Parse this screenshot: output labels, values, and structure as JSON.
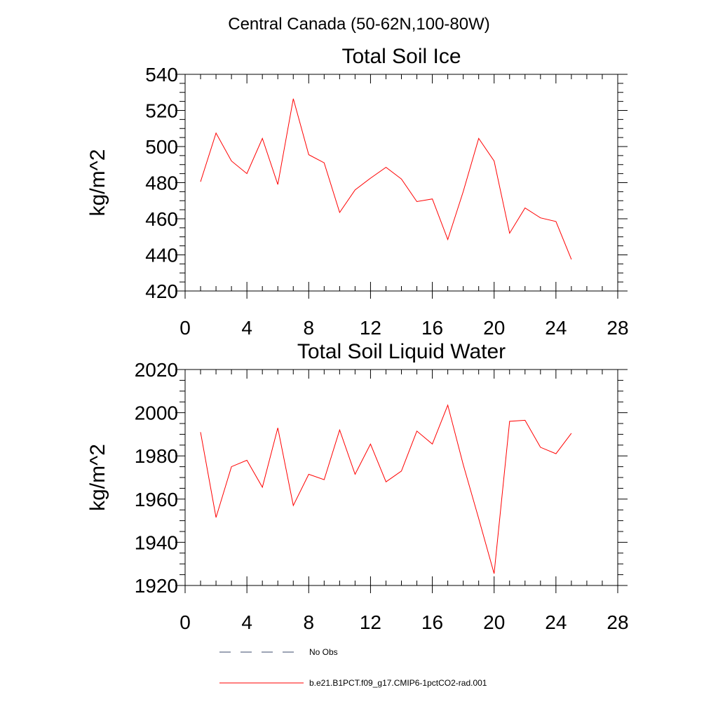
{
  "main_title": "Central Canada (50-62N,100-80W)",
  "colors": {
    "model": "#ff0000",
    "obs": "#3b4a6b"
  },
  "legend": {
    "obs_label": "No Obs",
    "model_label": "b.e21.B1PCT.f09_g17.CMIP6-1pctCO2-rad.001"
  },
  "chart_data": [
    {
      "type": "line",
      "title": "Total Soil Ice",
      "ylabel": "kg/m^2",
      "xlabel": "",
      "xlim": [
        0,
        28
      ],
      "ylim": [
        420,
        540
      ],
      "xticks": [
        0,
        4,
        8,
        12,
        16,
        20,
        24,
        28
      ],
      "xtick_labels": [
        "0",
        "4",
        "8",
        "12",
        "16",
        "20",
        "24",
        "28"
      ],
      "yticks": [
        420,
        440,
        460,
        480,
        500,
        520,
        540
      ],
      "ytick_labels": [
        "420",
        "440",
        "460",
        "480",
        "500",
        "520",
        "540"
      ],
      "series": [
        {
          "name": "b.e21.B1PCT.f09_g17.CMIP6-1pctCO2-rad.001",
          "x": [
            1,
            2,
            3,
            4,
            5,
            6,
            7,
            8,
            9,
            10,
            11,
            12,
            13,
            14,
            15,
            16,
            17,
            18,
            19,
            20,
            21,
            22,
            23,
            24,
            25
          ],
          "values": [
            480.5,
            507.5,
            492,
            485,
            504.5,
            479,
            526.5,
            495.5,
            491,
            463.5,
            476,
            482.5,
            488.5,
            482,
            469.5,
            471,
            448.5,
            475,
            504.5,
            492,
            452,
            466,
            460.5,
            458.5,
            437.5
          ]
        }
      ]
    },
    {
      "type": "line",
      "title": "Total Soil Liquid Water",
      "ylabel": "kg/m^2",
      "xlabel": "",
      "xlim": [
        0,
        28
      ],
      "ylim": [
        1920,
        2020
      ],
      "xticks": [
        0,
        4,
        8,
        12,
        16,
        20,
        24,
        28
      ],
      "xtick_labels": [
        "0",
        "4",
        "8",
        "12",
        "16",
        "20",
        "24",
        "28"
      ],
      "yticks": [
        1920,
        1940,
        1960,
        1980,
        2000,
        2020
      ],
      "ytick_labels": [
        "1920",
        "1940",
        "1960",
        "1980",
        "2000",
        "2020"
      ],
      "series": [
        {
          "name": "b.e21.B1PCT.f09_g17.CMIP6-1pctCO2-rad.001",
          "x": [
            1,
            2,
            3,
            4,
            5,
            6,
            7,
            8,
            9,
            10,
            11,
            12,
            13,
            14,
            15,
            16,
            17,
            18,
            19,
            20,
            21,
            22,
            23,
            24,
            25
          ],
          "values": [
            1991,
            1951.5,
            1975,
            1978,
            1965.5,
            1993,
            1957,
            1971.5,
            1969,
            1992,
            1971.5,
            1985.5,
            1968,
            1973,
            1991.5,
            1985.5,
            2003.5,
            1976,
            1951,
            1925.5,
            1996,
            1996.5,
            1984,
            1981,
            1990.5
          ]
        }
      ]
    }
  ]
}
